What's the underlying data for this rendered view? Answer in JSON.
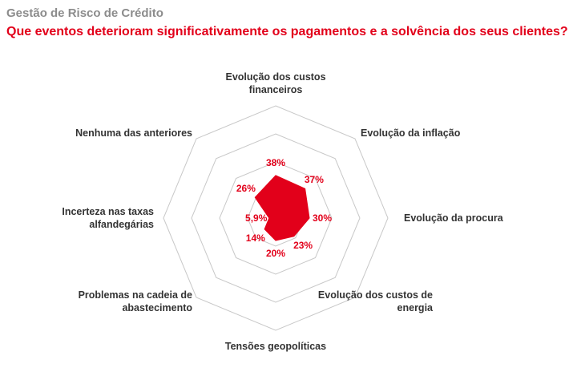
{
  "header": {
    "supertitle": "Gestão de Risco de Crédito",
    "title": "Que eventos deterioram significativamente os pagamentos e a solvência dos seus clientes?"
  },
  "chart_data": {
    "type": "radar",
    "title": "Que eventos deterioram significativamente os pagamentos e a solvência dos seus clientes?",
    "categories": [
      "Evolução dos custos financeiros",
      "Evolução da inflação",
      "Evolução da procura",
      "Evolução dos custos de energia",
      "Tensões geopolíticas",
      "Problemas na cadeia de abastecimento",
      "Incerteza nas taxas alfandegárias",
      "Nenhuma das anteriores"
    ],
    "values": [
      38,
      37,
      30,
      23,
      20,
      14,
      5.9,
      26
    ],
    "value_labels": [
      "38%",
      "37%",
      "30%",
      "23%",
      "20%",
      "14%",
      "5,9%",
      "26%"
    ],
    "rmax": 100,
    "rings": 4,
    "series_color": "#e2001a",
    "grid_color": "#c8c8c8"
  }
}
